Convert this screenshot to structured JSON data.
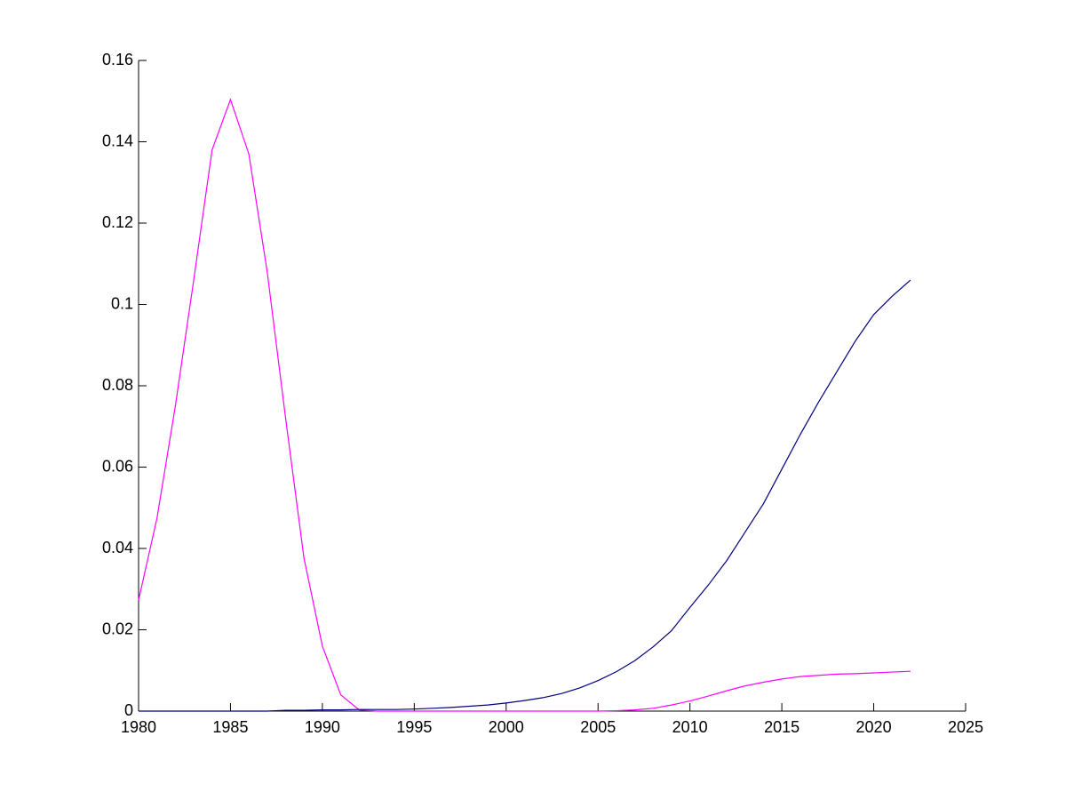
{
  "chart_data": {
    "type": "line",
    "x": [
      1980,
      1981,
      1982,
      1983,
      1984,
      1985,
      1986,
      1987,
      1988,
      1989,
      1990,
      1991,
      1992,
      1993,
      1994,
      1995,
      1996,
      1997,
      1998,
      1999,
      2000,
      2001,
      2002,
      2003,
      2004,
      2005,
      2006,
      2007,
      2008,
      2009,
      2010,
      2011,
      2012,
      2013,
      2014,
      2015,
      2016,
      2017,
      2018,
      2019,
      2020,
      2021,
      2022
    ],
    "series": [
      {
        "color": "#ff00ff",
        "values": [
          0.0273,
          0.0474,
          0.075,
          0.106,
          0.138,
          0.1504,
          0.137,
          0.108,
          0.072,
          0.0376,
          0.016,
          0.004,
          0.0003,
          0,
          0,
          0,
          0,
          0,
          0,
          0,
          0,
          0,
          0,
          0,
          0,
          0,
          0.0001,
          0.0003,
          0.0007,
          0.0015,
          0.0025,
          0.0037,
          0.005,
          0.0062,
          0.0071,
          0.0079,
          0.0085,
          0.0088,
          0.0091,
          0.0092,
          0.0094,
          0.0096,
          0.0098
        ]
      },
      {
        "color": "#00007f",
        "values": [
          0,
          0,
          0,
          0,
          0,
          0,
          0,
          0,
          0.0002,
          0.0002,
          0.0003,
          0.0003,
          0.0004,
          0.0004,
          0.0004,
          0.0005,
          0.0007,
          0.0009,
          0.0012,
          0.0015,
          0.002,
          0.0026,
          0.0033,
          0.0043,
          0.0057,
          0.0075,
          0.0097,
          0.0124,
          0.0158,
          0.0198,
          0.0255,
          0.031,
          0.037,
          0.044,
          0.051,
          0.0595,
          0.068,
          0.076,
          0.0835,
          0.091,
          0.0975,
          0.102,
          0.106
        ]
      }
    ],
    "xlim": [
      1980,
      2025
    ],
    "xticks": [
      1980,
      1985,
      1990,
      1995,
      2000,
      2005,
      2010,
      2015,
      2020,
      2025
    ],
    "ylim": [
      0,
      0.16
    ],
    "yticks": [
      0,
      0.02,
      0.04,
      0.06,
      0.08,
      0.1,
      0.12,
      0.14,
      0.16
    ]
  }
}
